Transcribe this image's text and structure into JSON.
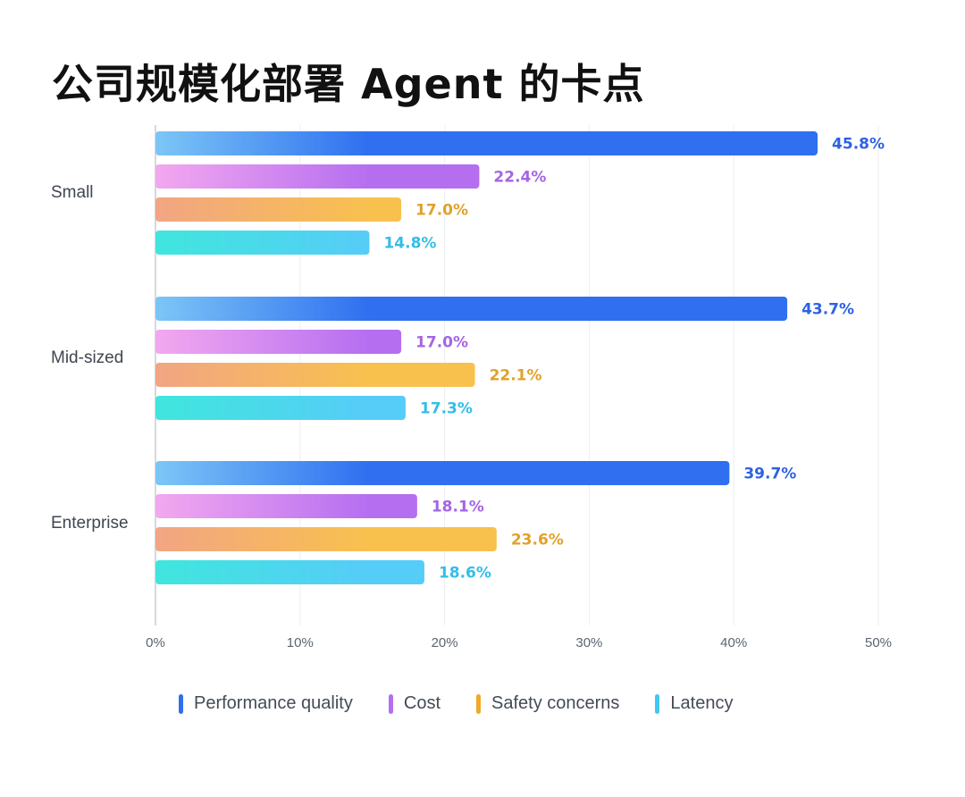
{
  "title": "公司规模化部署 Agent 的卡点",
  "chart_data": {
    "type": "bar",
    "orientation": "horizontal",
    "title": "公司规模化部署 Agent 的卡点",
    "categories": [
      "Small",
      "Mid-sized",
      "Enterprise"
    ],
    "series": [
      {
        "name": "Performance quality",
        "values": [
          45.8,
          43.7,
          39.7
        ],
        "labels": [
          "45.8%",
          "43.7%",
          "39.7%"
        ],
        "color": "#2f6ff0",
        "gradient_start": "#7cc6f6",
        "label_color": "#2d62e2"
      },
      {
        "name": "Cost",
        "values": [
          22.4,
          17.0,
          18.1
        ],
        "labels": [
          "22.4%",
          "17.0%",
          "18.1%"
        ],
        "color": "#b56ef0",
        "gradient_start": "#f3a8ef",
        "label_color": "#a565e3"
      },
      {
        "name": "Safety concerns",
        "values": [
          17.0,
          22.1,
          23.6
        ],
        "labels": [
          "17.0%",
          "22.1%",
          "23.6%"
        ],
        "color": "#f8c14e",
        "gradient_start": "#f2a583",
        "label_color": "#e0a12a"
      },
      {
        "name": "Latency",
        "values": [
          14.8,
          17.3,
          18.6
        ],
        "labels": [
          "14.8%",
          "17.3%",
          "18.6%"
        ],
        "color": "#56ccf8",
        "gradient_start": "#40e6dd",
        "label_color": "#33bde9"
      }
    ],
    "xlim": [
      0,
      50
    ],
    "xticks": [
      0,
      10,
      20,
      30,
      40,
      50
    ],
    "xtick_labels": [
      "0%",
      "10%",
      "20%",
      "30%",
      "40%",
      "50%"
    ],
    "grid": true,
    "legend": "bottom"
  },
  "legend": {
    "items": [
      {
        "label": "Performance quality",
        "color": "#2f6ff0"
      },
      {
        "label": "Cost",
        "color": "#b56ef0"
      },
      {
        "label": "Safety concerns",
        "color": "#f0a82a"
      },
      {
        "label": "Latency",
        "color": "#40c8f4"
      }
    ]
  }
}
